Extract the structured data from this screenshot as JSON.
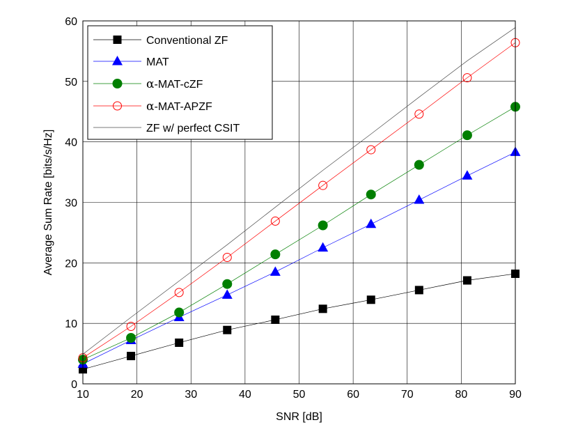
{
  "chart_data": {
    "type": "line",
    "title": "",
    "xlabel": "SNR [dB]",
    "ylabel": "Average Sum Rate [bits/s/Hz]",
    "xlim": [
      10,
      90
    ],
    "ylim": [
      0,
      60
    ],
    "xticks": [
      10,
      20,
      30,
      40,
      50,
      60,
      70,
      80,
      90
    ],
    "yticks": [
      0,
      10,
      20,
      30,
      40,
      50,
      60
    ],
    "grid": true,
    "legend_position": "top-left",
    "x": [
      10,
      18.9,
      27.8,
      36.7,
      45.6,
      54.4,
      63.3,
      72.2,
      81.1,
      90
    ],
    "series": [
      {
        "name": "Conventional ZF",
        "label_prefix": "",
        "label_rest": "Conventional ZF",
        "marker": "filled-square",
        "color": "#000000",
        "values": [
          2.4,
          4.6,
          6.8,
          8.9,
          10.6,
          12.4,
          13.9,
          15.5,
          17.1,
          18.2
        ]
      },
      {
        "name": "MAT",
        "label_prefix": "",
        "label_rest": "MAT",
        "marker": "filled-triangle",
        "color": "#0000ff",
        "values": [
          3.3,
          7.2,
          11.0,
          14.7,
          18.5,
          22.5,
          26.4,
          30.4,
          34.4,
          38.3
        ]
      },
      {
        "name": "α-MAT-cZF",
        "label_prefix": "α",
        "label_rest": "-MAT-cZF",
        "marker": "filled-circle",
        "color": "#007f00",
        "values": [
          4.0,
          7.6,
          11.8,
          16.5,
          21.4,
          26.2,
          31.3,
          36.2,
          41.1,
          45.8
        ]
      },
      {
        "name": "α-MAT-APZF",
        "label_prefix": "α",
        "label_rest": "-MAT-APZF",
        "marker": "open-circle",
        "color": "#ff0000",
        "values": [
          4.3,
          9.5,
          15.1,
          20.9,
          26.9,
          32.8,
          38.7,
          44.6,
          50.6,
          56.4
        ]
      },
      {
        "name": "ZF w/ perfect CSIT",
        "label_prefix": "",
        "label_rest": "ZF w/ perfect CSIT",
        "marker": "none",
        "color": "#4d4d4d",
        "values": [
          4.9,
          11.0,
          17.0,
          23.0,
          29.2,
          35.3,
          41.3,
          47.4,
          53.4,
          58.9
        ]
      }
    ]
  }
}
